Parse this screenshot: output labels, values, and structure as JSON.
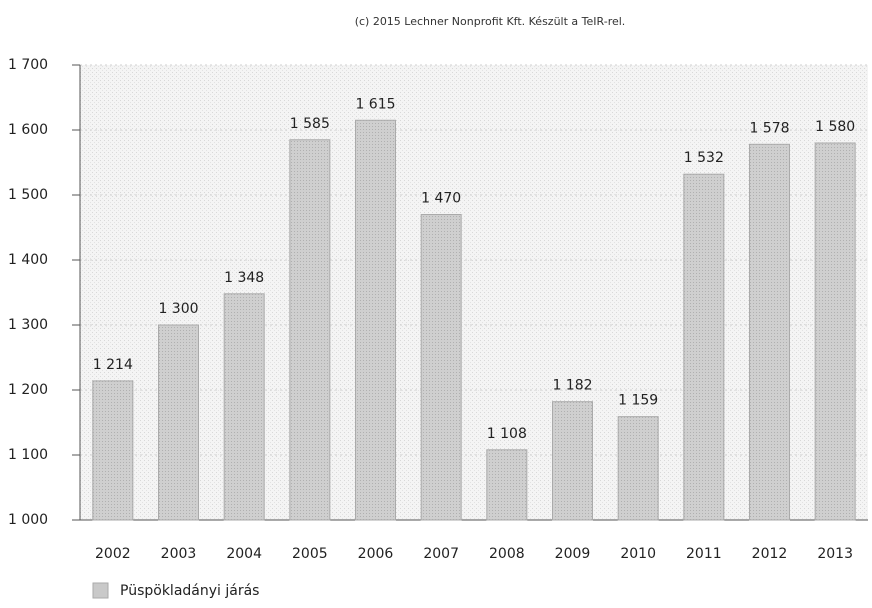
{
  "chart_data": {
    "type": "bar",
    "title": "(c) 2015 Lechner Nonprofit Kft. Készült a TeIR-rel.",
    "categories": [
      "2002",
      "2003",
      "2004",
      "2005",
      "2006",
      "2007",
      "2008",
      "2009",
      "2010",
      "2011",
      "2012",
      "2013"
    ],
    "series": [
      {
        "name": "Püspökladányi járás",
        "color": "#c9c9c9",
        "values": [
          1214,
          1300,
          1348,
          1585,
          1615,
          1470,
          1108,
          1182,
          1159,
          1532,
          1578,
          1580
        ],
        "value_labels": [
          "1 214",
          "1 300",
          "1 348",
          "1 585",
          "1 615",
          "1 470",
          "1 108",
          "1 182",
          "1 159",
          "1 532",
          "1 578",
          "1 580"
        ]
      }
    ],
    "ylim": [
      1000,
      1700
    ],
    "yticks": [
      {
        "value": 1000,
        "label": "1 000"
      },
      {
        "value": 1100,
        "label": "1 100"
      },
      {
        "value": 1200,
        "label": "1 200"
      },
      {
        "value": 1300,
        "label": "1 300"
      },
      {
        "value": 1400,
        "label": "1 400"
      },
      {
        "value": 1500,
        "label": "1 500"
      },
      {
        "value": 1600,
        "label": "1 600"
      },
      {
        "value": 1700,
        "label": "1 700"
      }
    ],
    "grid": true
  }
}
